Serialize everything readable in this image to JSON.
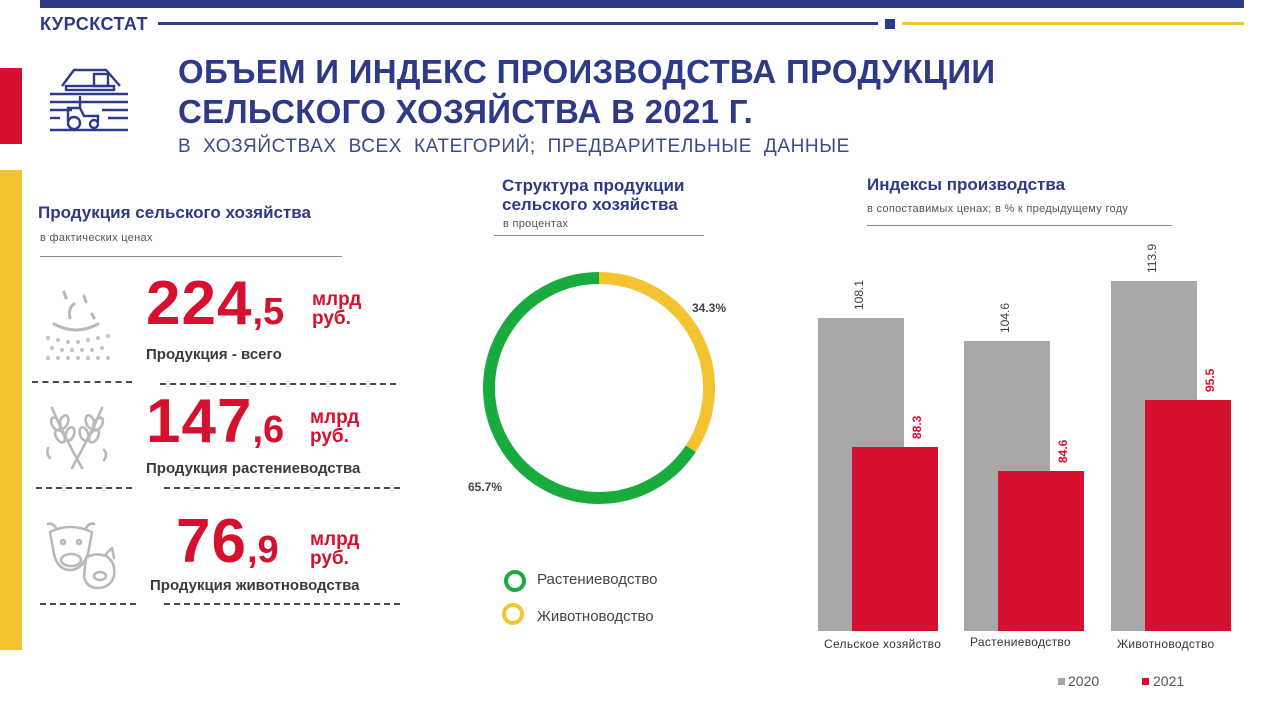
{
  "header": {
    "brand": "КУРСКСТАТ",
    "title_line1": "ОБЪЕМ И ИНДЕКС ПРОИЗВОДСТВА ПРОДУКЦИИ",
    "title_line2": "СЕЛЬСКОГО ХОЗЯЙСТВА В 2021 Г.",
    "subtitle": "В ХОЗЯЙСТВАХ ВСЕХ КАТЕГОРИЙ; ПРЕДВАРИТЕЛЬНЫЕ ДАННЫЕ"
  },
  "colors": {
    "navy": "#2e3a87",
    "red": "#d6102f",
    "yellow": "#f4c430",
    "green": "#1aab3f",
    "gray": "#a8a8a8"
  },
  "production": {
    "title": "Продукция сельского хозяйства",
    "subtitle": "в фактических ценах",
    "items": [
      {
        "icon": "seedling-icon",
        "int": "224",
        "dec": ",5",
        "unit1": "млрд",
        "unit2": "руб.",
        "label": "Продукция - всего"
      },
      {
        "icon": "wheat-icon",
        "int": "147",
        "dec": ",6",
        "unit1": "млрд",
        "unit2": "руб.",
        "label": "Продукция растениеводства"
      },
      {
        "icon": "livestock-icon",
        "int": "76",
        "dec": ",9",
        "unit1": "млрд",
        "unit2": "руб.",
        "label": "Продукция животноводства"
      }
    ]
  },
  "structure": {
    "title_line1": "Структура продукции",
    "title_line2": "сельского хозяйства",
    "subtitle": "в процентах",
    "legend": [
      "Растениеводство",
      "Животноводство"
    ]
  },
  "indices": {
    "title": "Индексы производства",
    "subtitle": "в сопоставимых ценах; в % к предыдущему году"
  },
  "chart_data": [
    {
      "type": "pie",
      "title": "Структура продукции сельского хозяйства",
      "subtitle": "в процентах",
      "categories": [
        "Растениеводство",
        "Животноводство"
      ],
      "values": [
        65.7,
        34.3
      ],
      "labels": [
        "65.7%",
        "34.3%"
      ],
      "colors": [
        "#1aab3f",
        "#f4c430"
      ],
      "donut": true,
      "legend": "bottom"
    },
    {
      "type": "bar",
      "title": "Индексы производства",
      "subtitle": "в сопоставимых ценах; в % к предыдущему году",
      "categories": [
        "Сельское хозяйство",
        "Растениеводство",
        "Животноводство"
      ],
      "series": [
        {
          "name": "2020",
          "values": [
            108.1,
            104.6,
            113.9
          ],
          "labels": [
            "108.1",
            "104.6",
            "113.9"
          ],
          "color": "#a8a8a8"
        },
        {
          "name": "2021",
          "values": [
            88.3,
            84.6,
            95.5
          ],
          "labels": [
            "88.3",
            "84.6",
            "95.5"
          ],
          "color": "#d6102f"
        }
      ],
      "ylim": [
        60,
        120
      ],
      "grid": false,
      "legend": "bottom-right"
    }
  ]
}
